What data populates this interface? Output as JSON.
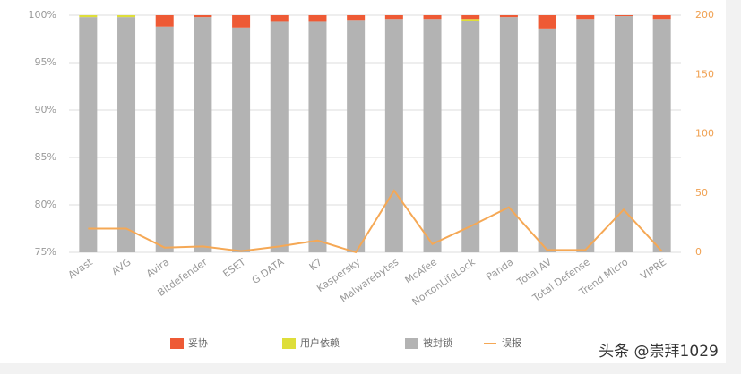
{
  "chart_data": {
    "type": "bar",
    "stacked": true,
    "categories": [
      "Avast",
      "AVG",
      "Avira",
      "Bitdefender",
      "ESET",
      "G DATA",
      "K7",
      "Kaspersky",
      "Malwarebytes",
      "McAfee",
      "NortonLifeLock",
      "Panda",
      "Total AV",
      "Total Defense",
      "Trend Micro",
      "VIPRE"
    ],
    "series": [
      {
        "name": "妥协",
        "color": "#ee5a35",
        "values": [
          0,
          0,
          1.2,
          0.2,
          1.3,
          0.7,
          0.7,
          0.5,
          0.4,
          0.4,
          0.4,
          0.2,
          1.4,
          0.4,
          0.1,
          0.4
        ]
      },
      {
        "name": "用户依赖",
        "color": "#dede3a",
        "values": [
          0.2,
          0.2,
          0,
          0,
          0,
          0,
          0,
          0,
          0,
          0,
          0.2,
          0,
          0,
          0,
          0,
          0
        ]
      },
      {
        "name": "被封锁",
        "color": "#b3b3b3",
        "values": [
          99.8,
          99.8,
          98.8,
          99.8,
          98.7,
          99.3,
          99.3,
          99.5,
          99.6,
          99.6,
          99.4,
          99.8,
          98.6,
          99.6,
          99.9,
          99.6
        ]
      },
      {
        "name": "误报",
        "color": "#f5a855",
        "type": "line",
        "axis": "y2",
        "values": [
          20,
          20,
          4,
          5,
          1,
          5,
          10,
          0,
          52,
          7,
          22,
          38,
          2,
          2,
          36,
          1
        ]
      }
    ],
    "ylim": [
      75,
      100
    ],
    "yticks": [
      {
        "value": 75,
        "label": "75%"
      },
      {
        "value": 80,
        "label": "80%"
      },
      {
        "value": 85,
        "label": "85%"
      },
      {
        "value": 90,
        "label": "90%"
      },
      {
        "value": 95,
        "label": "95%"
      },
      {
        "value": 100,
        "label": "100%"
      }
    ],
    "y2lim": [
      0,
      200
    ],
    "y2ticks": [
      0,
      50,
      100,
      150,
      200
    ],
    "grid": true,
    "legend": "bottom"
  },
  "watermark": "头条 @崇拜1029"
}
